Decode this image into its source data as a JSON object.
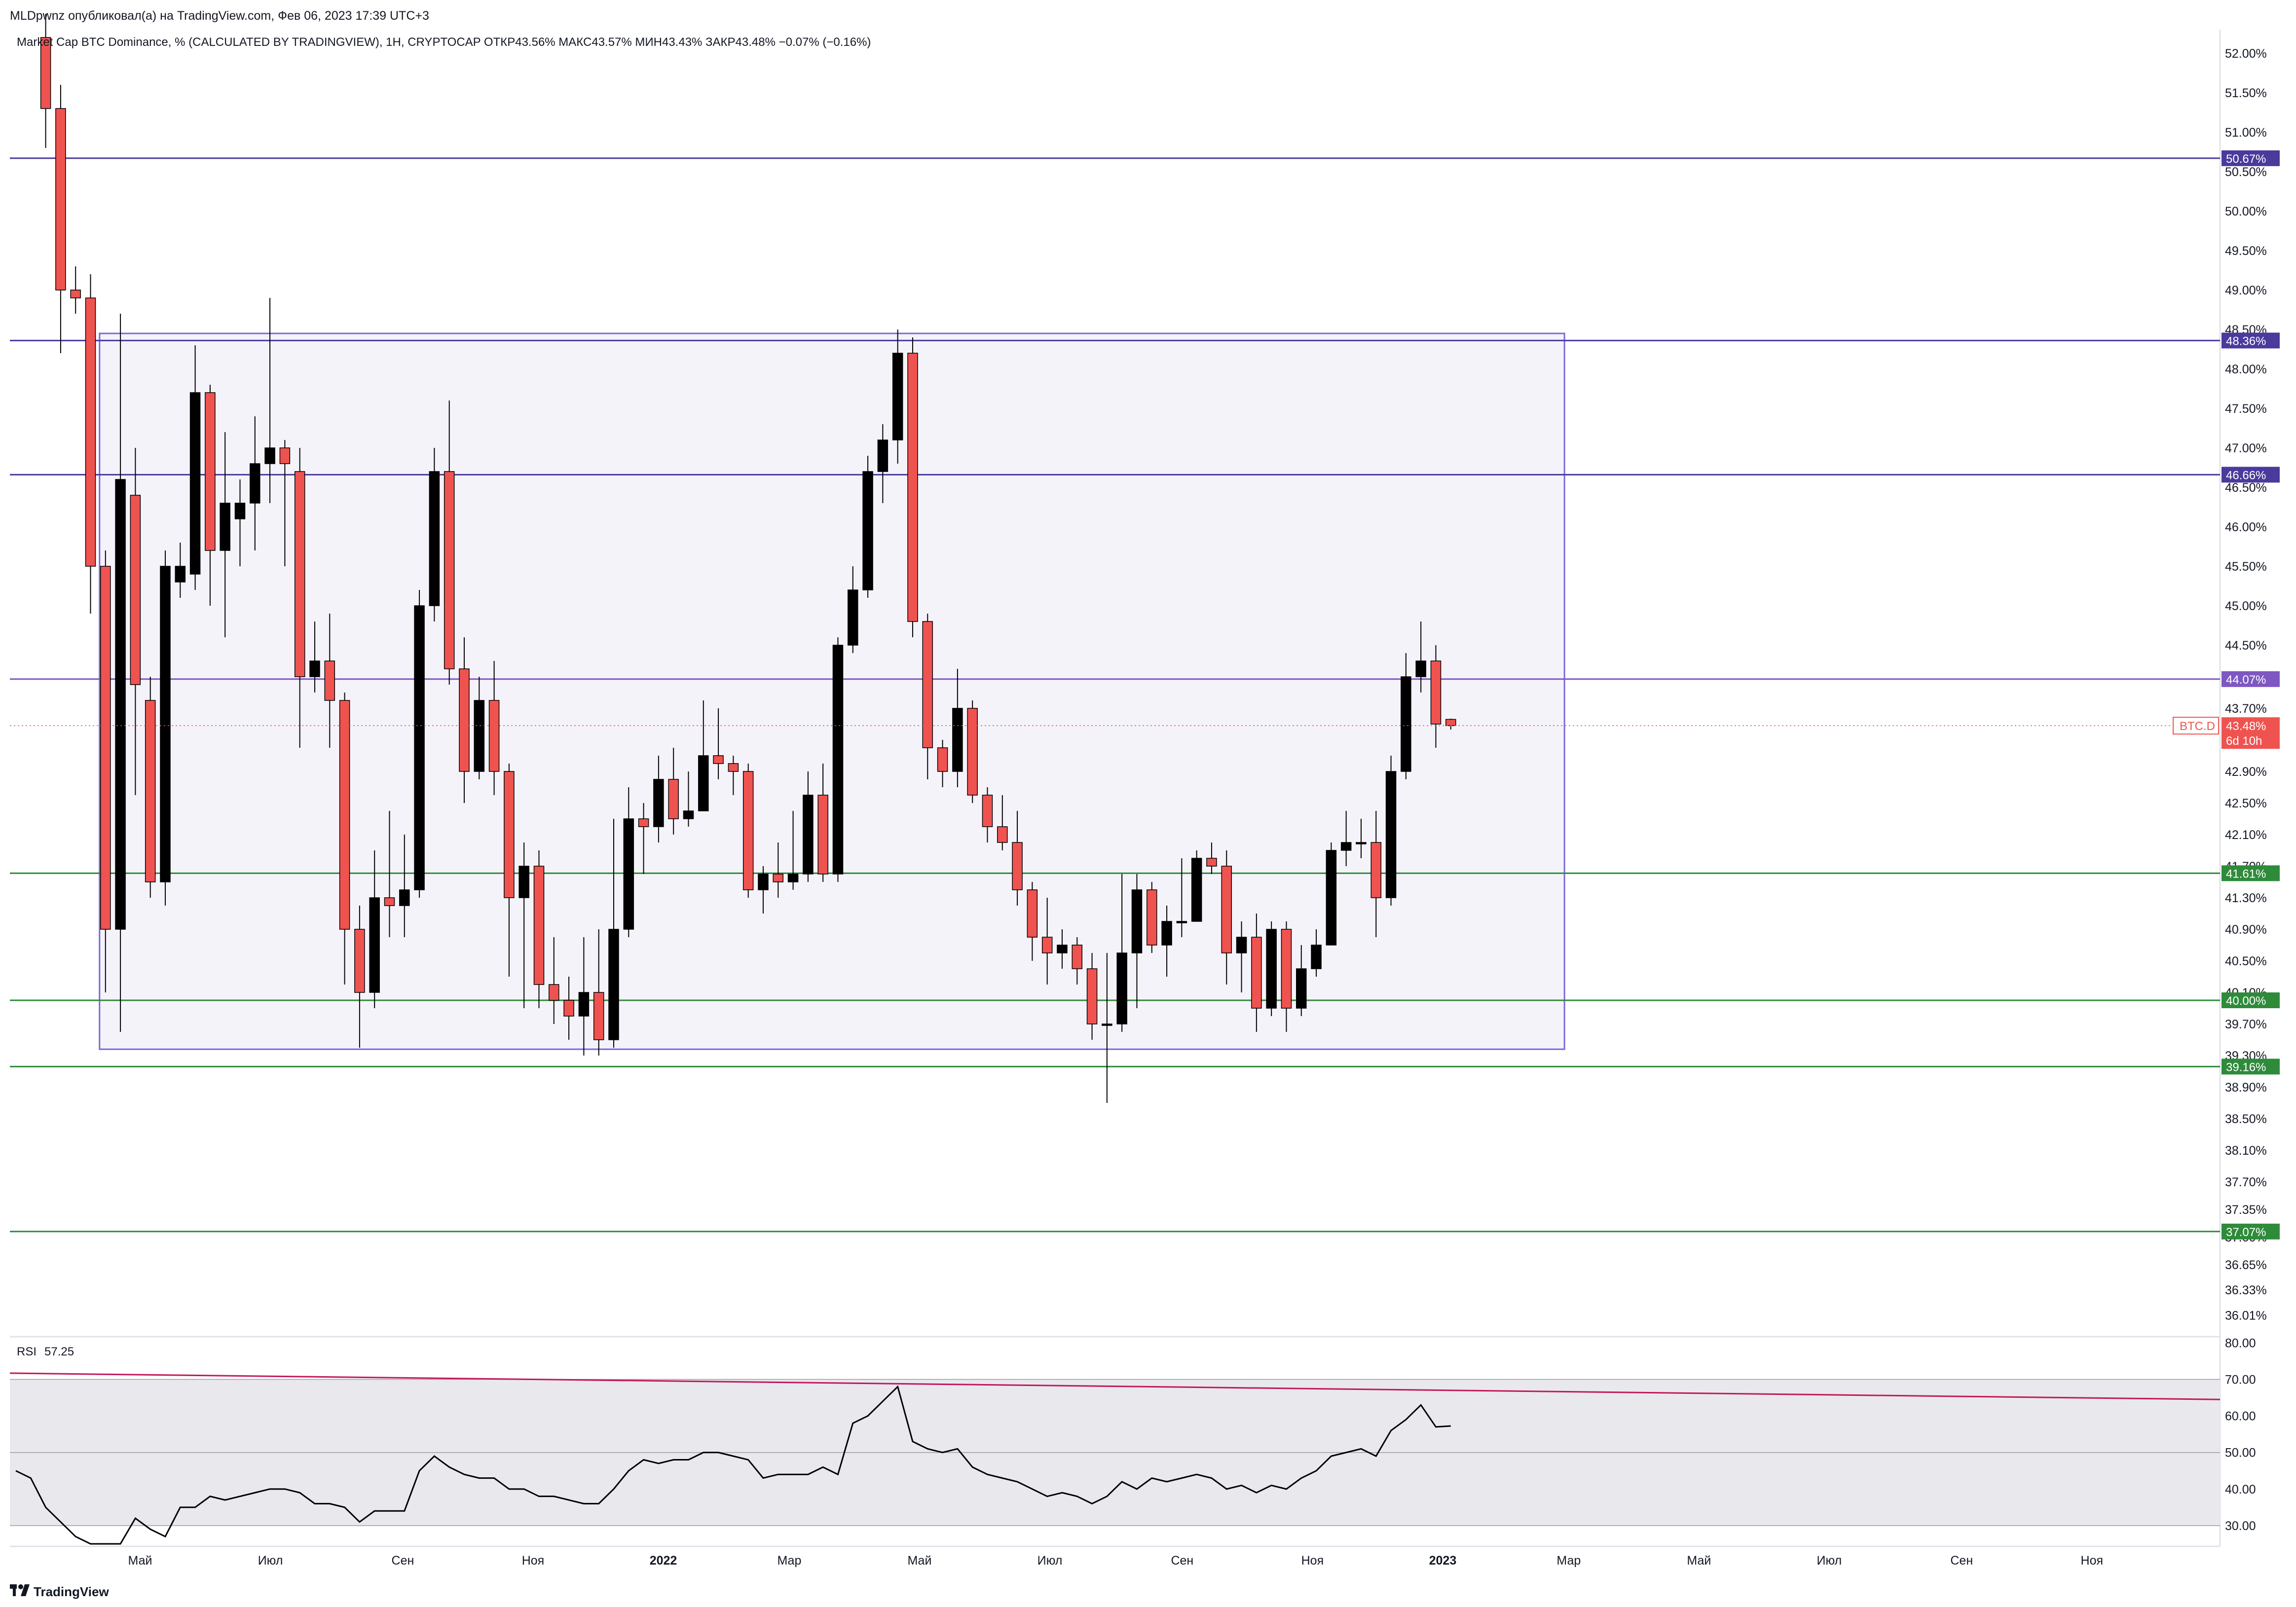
{
  "header": {
    "publisher": "MLDpwnz опубликовал(а) на TradingView.com, Фев 06, 2023 17:39 UTC+3",
    "symbol_line": "Market Cap BTC Dominance, % (CALCULATED BY TRADINGVIEW), 1Н, CRYPTOCAP  ОТКР43.56%  МАКС43.57%  МИН43.43%  ЗАКР43.48%  −0.07% (−0.16%)"
  },
  "footer": {
    "brand": "TradingView"
  },
  "colors": {
    "up": "#000000",
    "down": "#ef5350",
    "range_fill": "#f5f3fa",
    "range_stroke": "#7b68d8",
    "resistance": "#4a3a9c",
    "support": "#2e8b3a",
    "mid_line": "#7e57c2",
    "rsi_line": "#000000",
    "rsi_trend": "#c2185b",
    "rsi_band": "#e9e9ed"
  },
  "chart_data": [
    {
      "type": "candlestick",
      "name": "BTC.D",
      "price_label": "BTC.D",
      "last_value_label": "43.48%",
      "countdown_label": "6d 10h",
      "last_value": 43.48,
      "ylim": [
        35.8,
        52.3
      ],
      "y_ticks": [
        "52.00%",
        "51.50%",
        "51.00%",
        "50.50%",
        "50.00%",
        "49.50%",
        "49.00%",
        "48.50%",
        "48.00%",
        "47.50%",
        "47.00%",
        "46.50%",
        "46.00%",
        "45.50%",
        "45.00%",
        "44.50%",
        "43.70%",
        "42.90%",
        "42.50%",
        "42.10%",
        "41.70%",
        "41.30%",
        "40.90%",
        "40.50%",
        "40.10%",
        "39.70%",
        "39.30%",
        "38.90%",
        "38.50%",
        "38.10%",
        "37.70%",
        "37.35%",
        "37.00%",
        "36.65%",
        "36.33%",
        "36.01%"
      ],
      "y_tick_values": [
        52.0,
        51.5,
        51.0,
        50.5,
        50.0,
        49.5,
        49.0,
        48.5,
        48.0,
        47.5,
        47.0,
        46.5,
        46.0,
        45.5,
        45.0,
        44.5,
        43.7,
        42.9,
        42.5,
        42.1,
        41.7,
        41.3,
        40.9,
        40.5,
        40.1,
        39.7,
        39.3,
        38.9,
        38.5,
        38.1,
        37.7,
        37.35,
        37.0,
        36.65,
        36.33,
        36.01
      ],
      "x_axis": {
        "start": "2021-03-01",
        "end": "2023-12-31",
        "labels": [
          {
            "text": "Май",
            "date": "2021-05-01"
          },
          {
            "text": "Июл",
            "date": "2021-07-01"
          },
          {
            "text": "Сен",
            "date": "2021-09-01"
          },
          {
            "text": "Ноя",
            "date": "2021-11-01"
          },
          {
            "text": "2022",
            "date": "2022-01-01",
            "bold": true
          },
          {
            "text": "Мар",
            "date": "2022-03-01"
          },
          {
            "text": "Май",
            "date": "2022-05-01"
          },
          {
            "text": "Июл",
            "date": "2022-07-01"
          },
          {
            "text": "Сен",
            "date": "2022-09-01"
          },
          {
            "text": "Ноя",
            "date": "2022-11-01"
          },
          {
            "text": "2023",
            "date": "2023-01-01",
            "bold": true
          },
          {
            "text": "Мар",
            "date": "2023-03-01"
          },
          {
            "text": "Май",
            "date": "2023-05-01"
          },
          {
            "text": "Июл",
            "date": "2023-07-01"
          },
          {
            "text": "Сен",
            "date": "2023-09-01"
          },
          {
            "text": "Ноя",
            "date": "2023-11-01"
          }
        ]
      },
      "candles": [
        [
          "2021-03-15",
          52.2,
          51.3,
          52.5,
          50.8
        ],
        [
          "2021-03-22",
          51.3,
          49.0,
          51.6,
          48.2
        ],
        [
          "2021-03-29",
          49.0,
          48.9,
          49.3,
          48.7
        ],
        [
          "2021-04-05",
          48.9,
          45.5,
          49.2,
          44.9
        ],
        [
          "2021-04-12",
          45.5,
          40.9,
          45.7,
          40.1
        ],
        [
          "2021-04-19",
          40.9,
          46.6,
          48.7,
          39.6
        ],
        [
          "2021-04-26",
          46.4,
          44.0,
          47.0,
          42.6
        ],
        [
          "2021-05-03",
          43.8,
          41.5,
          44.1,
          41.3
        ],
        [
          "2021-05-10",
          41.5,
          45.5,
          45.7,
          41.2
        ],
        [
          "2021-05-17",
          45.3,
          45.5,
          45.8,
          45.1
        ],
        [
          "2021-05-24",
          45.4,
          47.7,
          48.3,
          45.2
        ],
        [
          "2021-05-31",
          47.7,
          45.7,
          47.8,
          45.0
        ],
        [
          "2021-06-07",
          45.7,
          46.3,
          47.2,
          44.6
        ],
        [
          "2021-06-14",
          46.1,
          46.3,
          46.6,
          45.5
        ],
        [
          "2021-06-21",
          46.3,
          46.8,
          47.4,
          45.7
        ],
        [
          "2021-06-28",
          46.8,
          47.0,
          48.9,
          46.3
        ],
        [
          "2021-07-05",
          47.0,
          46.8,
          47.1,
          45.5
        ],
        [
          "2021-07-12",
          46.7,
          44.1,
          47.0,
          43.2
        ],
        [
          "2021-07-19",
          44.1,
          44.3,
          44.8,
          43.9
        ],
        [
          "2021-07-26",
          44.3,
          43.8,
          44.9,
          43.2
        ],
        [
          "2021-08-02",
          43.8,
          40.9,
          43.9,
          40.2
        ],
        [
          "2021-08-09",
          40.9,
          40.1,
          41.2,
          39.4
        ],
        [
          "2021-08-16",
          40.1,
          41.3,
          41.9,
          39.9
        ],
        [
          "2021-08-23",
          41.3,
          41.2,
          42.4,
          40.8
        ],
        [
          "2021-08-30",
          41.2,
          41.4,
          42.1,
          40.8
        ],
        [
          "2021-09-06",
          41.4,
          45.0,
          45.2,
          41.3
        ],
        [
          "2021-09-13",
          45.0,
          46.7,
          47.0,
          44.8
        ],
        [
          "2021-09-20",
          46.7,
          44.2,
          47.6,
          44.0
        ],
        [
          "2021-09-27",
          44.2,
          42.9,
          44.6,
          42.5
        ],
        [
          "2021-10-04",
          42.9,
          43.8,
          44.1,
          42.8
        ],
        [
          "2021-10-11",
          43.8,
          42.9,
          44.3,
          42.6
        ],
        [
          "2021-10-18",
          42.9,
          41.3,
          43.0,
          40.3
        ],
        [
          "2021-10-25",
          41.3,
          41.7,
          42.0,
          39.9
        ],
        [
          "2021-11-01",
          41.7,
          40.2,
          41.9,
          39.9
        ],
        [
          "2021-11-08",
          40.2,
          40.0,
          40.8,
          39.7
        ],
        [
          "2021-11-15",
          40.0,
          39.8,
          40.3,
          39.5
        ],
        [
          "2021-11-22",
          39.8,
          40.1,
          40.8,
          39.3
        ],
        [
          "2021-11-29",
          40.1,
          39.5,
          40.9,
          39.3
        ],
        [
          "2021-12-06",
          39.5,
          40.9,
          42.3,
          39.4
        ],
        [
          "2021-12-13",
          40.9,
          42.3,
          42.7,
          40.8
        ],
        [
          "2021-12-20",
          42.3,
          42.2,
          42.5,
          41.6
        ],
        [
          "2021-12-27",
          42.2,
          42.8,
          43.1,
          42.0
        ],
        [
          "2022-01-03",
          42.8,
          42.3,
          43.2,
          42.1
        ],
        [
          "2022-01-10",
          42.3,
          42.4,
          42.9,
          42.2
        ],
        [
          "2022-01-17",
          42.4,
          43.1,
          43.8,
          42.4
        ],
        [
          "2022-01-24",
          43.1,
          43.0,
          43.7,
          42.8
        ],
        [
          "2022-01-31",
          43.0,
          42.9,
          43.1,
          42.6
        ],
        [
          "2022-02-07",
          42.9,
          41.4,
          43.0,
          41.3
        ],
        [
          "2022-02-14",
          41.4,
          41.6,
          41.7,
          41.1
        ],
        [
          "2022-02-21",
          41.6,
          41.5,
          42.0,
          41.3
        ],
        [
          "2022-02-28",
          41.5,
          41.6,
          42.4,
          41.4
        ],
        [
          "2022-03-07",
          41.6,
          42.6,
          42.9,
          41.5
        ],
        [
          "2022-03-14",
          42.6,
          41.6,
          43.0,
          41.5
        ],
        [
          "2022-03-21",
          41.6,
          44.5,
          44.6,
          41.5
        ],
        [
          "2022-03-28",
          44.5,
          45.2,
          45.5,
          44.4
        ],
        [
          "2022-04-04",
          45.2,
          46.7,
          46.9,
          45.1
        ],
        [
          "2022-04-11",
          46.7,
          47.1,
          47.3,
          46.3
        ],
        [
          "2022-04-18",
          47.1,
          48.2,
          48.5,
          46.8
        ],
        [
          "2022-04-25",
          48.2,
          44.8,
          48.4,
          44.6
        ],
        [
          "2022-05-02",
          44.8,
          43.2,
          44.9,
          42.8
        ],
        [
          "2022-05-09",
          43.2,
          42.9,
          43.3,
          42.7
        ],
        [
          "2022-05-16",
          42.9,
          43.7,
          44.2,
          42.7
        ],
        [
          "2022-05-23",
          43.7,
          42.6,
          43.8,
          42.5
        ],
        [
          "2022-05-30",
          42.6,
          42.2,
          42.7,
          42.0
        ],
        [
          "2022-06-06",
          42.2,
          42.0,
          42.6,
          41.9
        ],
        [
          "2022-06-13",
          42.0,
          41.4,
          42.4,
          41.2
        ],
        [
          "2022-06-20",
          41.4,
          40.8,
          41.5,
          40.5
        ],
        [
          "2022-06-27",
          40.8,
          40.6,
          41.3,
          40.2
        ],
        [
          "2022-07-04",
          40.6,
          40.7,
          40.9,
          40.4
        ],
        [
          "2022-07-11",
          40.7,
          40.4,
          40.8,
          40.2
        ],
        [
          "2022-07-18",
          40.4,
          39.7,
          40.6,
          39.5
        ],
        [
          "2022-07-25",
          39.7,
          39.7,
          40.6,
          38.7
        ],
        [
          "2022-08-01",
          39.7,
          40.6,
          41.6,
          39.6
        ],
        [
          "2022-08-08",
          40.6,
          41.4,
          41.6,
          39.9
        ],
        [
          "2022-08-15",
          41.4,
          40.7,
          41.5,
          40.6
        ],
        [
          "2022-08-22",
          40.7,
          41.0,
          41.2,
          40.3
        ],
        [
          "2022-08-29",
          41.0,
          41.0,
          41.8,
          40.8
        ],
        [
          "2022-09-05",
          41.0,
          41.8,
          41.9,
          41.0
        ],
        [
          "2022-09-12",
          41.8,
          41.7,
          42.0,
          41.6
        ],
        [
          "2022-09-19",
          41.7,
          40.6,
          41.9,
          40.2
        ],
        [
          "2022-09-26",
          40.6,
          40.8,
          41.0,
          40.1
        ],
        [
          "2022-10-03",
          40.8,
          39.9,
          41.1,
          39.6
        ],
        [
          "2022-10-10",
          39.9,
          40.9,
          41.0,
          39.8
        ],
        [
          "2022-10-17",
          40.9,
          39.9,
          41.0,
          39.6
        ],
        [
          "2022-10-24",
          39.9,
          40.4,
          40.7,
          39.8
        ],
        [
          "2022-10-31",
          40.4,
          40.7,
          40.9,
          40.3
        ],
        [
          "2022-11-07",
          40.7,
          41.9,
          42.0,
          40.8
        ],
        [
          "2022-11-14",
          41.9,
          42.0,
          42.4,
          41.7
        ],
        [
          "2022-11-21",
          42.0,
          42.0,
          42.3,
          41.8
        ],
        [
          "2022-11-28",
          42.0,
          41.3,
          42.4,
          40.8
        ],
        [
          "2022-12-05",
          41.3,
          42.9,
          43.1,
          41.2
        ],
        [
          "2022-12-12",
          42.9,
          44.1,
          44.4,
          42.8
        ],
        [
          "2022-12-19",
          44.1,
          44.3,
          44.8,
          43.9
        ],
        [
          "2022-12-26",
          44.3,
          43.5,
          44.5,
          43.2
        ],
        [
          "2023-01-02",
          43.56,
          43.48,
          43.57,
          43.43
        ]
      ]
    },
    {
      "type": "line",
      "name": "RSI",
      "title": "RSI",
      "value_label": "57.25",
      "ylim": [
        25,
        81
      ],
      "y_ticks": [
        "80.00",
        "70.00",
        "60.00",
        "50.00",
        "40.00",
        "30.00"
      ],
      "y_tick_values": [
        80,
        70,
        60,
        50,
        40,
        30
      ],
      "band": [
        30,
        70
      ],
      "midline": 50,
      "trendline": [
        [
          "2021-03-01",
          71.7
        ],
        [
          "2023-12-31",
          64.5
        ]
      ],
      "x": [
        "2021-03-01",
        "2021-03-08",
        "2021-03-15",
        "2021-03-22",
        "2021-03-29",
        "2021-04-05",
        "2021-04-12",
        "2021-04-19",
        "2021-04-26",
        "2021-05-03",
        "2021-05-10",
        "2021-05-17",
        "2021-05-24",
        "2021-05-31",
        "2021-06-07",
        "2021-06-14",
        "2021-06-21",
        "2021-06-28",
        "2021-07-05",
        "2021-07-12",
        "2021-07-19",
        "2021-07-26",
        "2021-08-02",
        "2021-08-09",
        "2021-08-16",
        "2021-08-23",
        "2021-08-30",
        "2021-09-06",
        "2021-09-13",
        "2021-09-20",
        "2021-09-27",
        "2021-10-04",
        "2021-10-11",
        "2021-10-18",
        "2021-10-25",
        "2021-11-01",
        "2021-11-08",
        "2021-11-15",
        "2021-11-22",
        "2021-11-29",
        "2021-12-06",
        "2021-12-13",
        "2021-12-20",
        "2021-12-27",
        "2022-01-03",
        "2022-01-10",
        "2022-01-17",
        "2022-01-24",
        "2022-01-31",
        "2022-02-07",
        "2022-02-14",
        "2022-02-21",
        "2022-02-28",
        "2022-03-07",
        "2022-03-14",
        "2022-03-21",
        "2022-03-28",
        "2022-04-04",
        "2022-04-11",
        "2022-04-18",
        "2022-04-25",
        "2022-05-02",
        "2022-05-09",
        "2022-05-16",
        "2022-05-23",
        "2022-05-30",
        "2022-06-06",
        "2022-06-13",
        "2022-06-20",
        "2022-06-27",
        "2022-07-04",
        "2022-07-11",
        "2022-07-18",
        "2022-07-25",
        "2022-08-01",
        "2022-08-08",
        "2022-08-15",
        "2022-08-22",
        "2022-08-29",
        "2022-09-05",
        "2022-09-12",
        "2022-09-19",
        "2022-09-26",
        "2022-10-03",
        "2022-10-10",
        "2022-10-17",
        "2022-10-24",
        "2022-10-31",
        "2022-11-07",
        "2022-11-14",
        "2022-11-21",
        "2022-11-28",
        "2022-12-05",
        "2022-12-12",
        "2022-12-19",
        "2022-12-26",
        "2023-01-02"
      ],
      "values": [
        45,
        43,
        35,
        31,
        27,
        25,
        24,
        22,
        32,
        29,
        27,
        35,
        35,
        38,
        37,
        38,
        39,
        40,
        40,
        39,
        36,
        36,
        35,
        31,
        34,
        34,
        34,
        45,
        49,
        46,
        44,
        43,
        43,
        40,
        40,
        38,
        38,
        37,
        36,
        36,
        40,
        45,
        48,
        47,
        48,
        48,
        50,
        50,
        49,
        48,
        43,
        44,
        44,
        44,
        46,
        44,
        58,
        60,
        64,
        68,
        53,
        51,
        50,
        51,
        46,
        44,
        43,
        42,
        40,
        38,
        39,
        38,
        36,
        38,
        42,
        40,
        43,
        42,
        43,
        44,
        43,
        40,
        41,
        39,
        41,
        40,
        43,
        45,
        49,
        50,
        51,
        49,
        56,
        59,
        63,
        57,
        57.25
      ]
    }
  ],
  "levels": [
    {
      "value": 50.67,
      "label": "50.67%",
      "kind": "resistance"
    },
    {
      "value": 48.36,
      "label": "48.36%",
      "kind": "resistance"
    },
    {
      "value": 46.66,
      "label": "46.66%",
      "kind": "resistance"
    },
    {
      "value": 44.07,
      "label": "44.07%",
      "kind": "mid"
    },
    {
      "value": 41.61,
      "label": "41.61%",
      "kind": "support"
    },
    {
      "value": 40.0,
      "label": "40.00%",
      "kind": "support"
    },
    {
      "value": 39.16,
      "label": "39.16%",
      "kind": "support"
    },
    {
      "value": 37.07,
      "label": "37.07%",
      "kind": "support"
    }
  ],
  "range_box": {
    "start": "2021-04-12",
    "end": "2023-02-27",
    "top": 48.45,
    "bottom": 39.38
  }
}
